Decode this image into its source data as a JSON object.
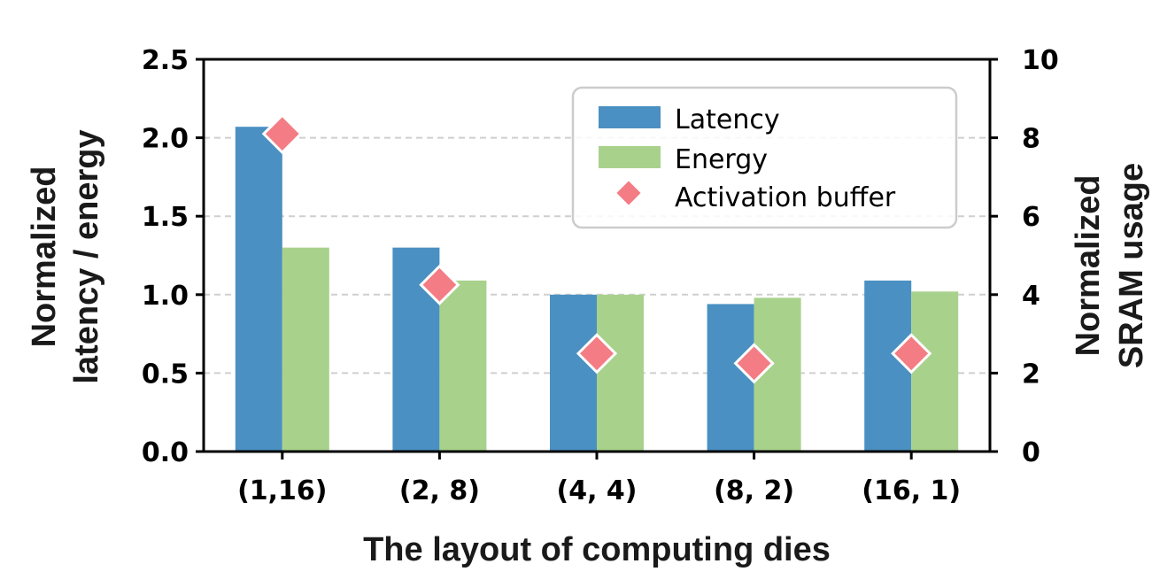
{
  "chart_data": {
    "type": "bar",
    "title": "",
    "categories": [
      "(1,16)",
      "(2, 8)",
      "(4, 4)",
      "(8, 2)",
      "(16, 1)"
    ],
    "series": [
      {
        "name": "Latency",
        "axis": "left",
        "kind": "bar",
        "color": "#4a90c2",
        "values": [
          2.07,
          1.3,
          1.0,
          0.94,
          1.09
        ]
      },
      {
        "name": "Energy",
        "axis": "left",
        "kind": "bar",
        "color": "#a8d28c",
        "values": [
          1.3,
          1.09,
          1.0,
          0.98,
          1.02
        ]
      },
      {
        "name": "Activation buffer",
        "axis": "right",
        "kind": "marker",
        "marker": "diamond",
        "color": "#f47c84",
        "values": [
          8.1,
          4.25,
          2.5,
          2.25,
          2.5
        ]
      }
    ],
    "xlabel": "The layout of computing dies",
    "ylabel_left": [
      "Normalized",
      "latency / energy"
    ],
    "ylabel_right": [
      "Normalized",
      "SRAM usage"
    ],
    "ylim_left": [
      0,
      2.5
    ],
    "ylim_right": [
      0,
      10
    ],
    "yticks_left": [
      "0.0",
      "0.5",
      "1.0",
      "1.5",
      "2.0",
      "2.5"
    ],
    "yticks_right": [
      "0",
      "2",
      "4",
      "6",
      "8",
      "10"
    ],
    "grid": "horizontal dashed",
    "legend": "top-right"
  }
}
